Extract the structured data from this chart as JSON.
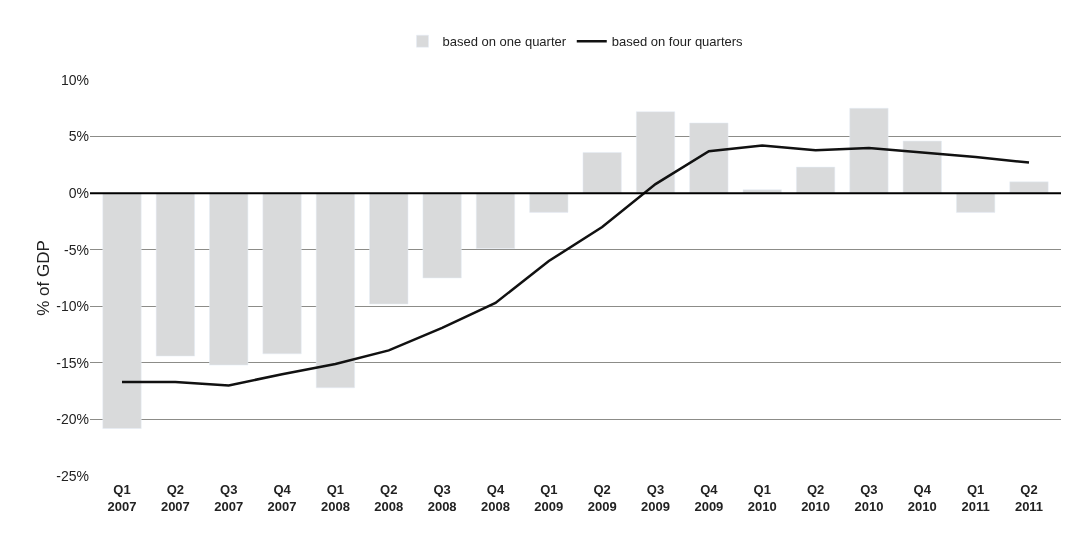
{
  "chart_data": {
    "type": "bar",
    "ylabel": "% of GDP",
    "categories": [
      "Q1\n2007",
      "Q2\n2007",
      "Q3\n2007",
      "Q4\n2007",
      "Q1\n2008",
      "Q2\n2008",
      "Q3\n2008",
      "Q4\n2008",
      "Q1\n2009",
      "Q2\n2009",
      "Q3\n2009",
      "Q4\n2009",
      "Q1\n2010",
      "Q2\n2010",
      "Q3\n2010",
      "Q4\n2010",
      "Q1\n2011",
      "Q2\n2011"
    ],
    "series": [
      {
        "name": "based on one quarter",
        "color": "#d9dadb",
        "values": [
          -20.8,
          -14.4,
          -15.2,
          -14.2,
          -17.2,
          -9.8,
          -7.5,
          -4.9,
          -1.7,
          3.6,
          7.2,
          6.2,
          0.3,
          2.3,
          7.5,
          4.6,
          -1.7,
          1.0
        ]
      },
      {
        "name": "based on four quarters",
        "type": "line",
        "color": "#111111",
        "values": [
          -16.7,
          -16.7,
          -17.0,
          -16.0,
          -15.1,
          -13.9,
          -11.9,
          -9.7,
          -6.0,
          -3.0,
          0.8,
          3.7,
          4.2,
          3.8,
          4.0,
          3.6,
          3.2,
          2.7
        ]
      }
    ],
    "ylim": [
      -25,
      10
    ],
    "yticks": [
      {
        "value": -25,
        "label": "-25%"
      },
      {
        "value": -20,
        "label": "-20%"
      },
      {
        "value": -15,
        "label": "-15%"
      },
      {
        "value": -10,
        "label": "-10%"
      },
      {
        "value": -5,
        "label": "-5%"
      },
      {
        "value": 0,
        "label": "0%"
      },
      {
        "value": 5,
        "label": "5%"
      },
      {
        "value": 10,
        "label": "10%"
      }
    ],
    "ref_lines": [
      {
        "axis": "y",
        "value": 0,
        "color": "#000000"
      }
    ],
    "grid": "y",
    "legend": "top",
    "marker": "none",
    "line_style": "solid"
  }
}
